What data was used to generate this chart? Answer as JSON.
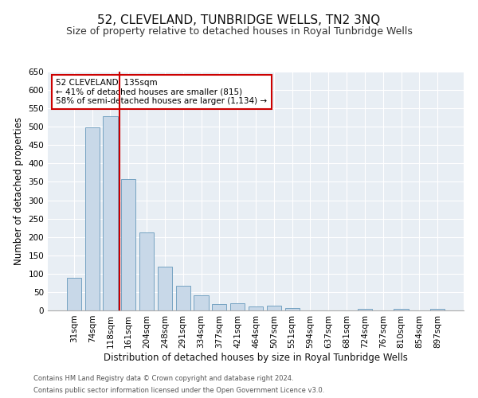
{
  "title": "52, CLEVELAND, TUNBRIDGE WELLS, TN2 3NQ",
  "subtitle": "Size of property relative to detached houses in Royal Tunbridge Wells",
  "xlabel": "Distribution of detached houses by size in Royal Tunbridge Wells",
  "ylabel": "Number of detached properties",
  "footnote1": "Contains HM Land Registry data © Crown copyright and database right 2024.",
  "footnote2": "Contains public sector information licensed under the Open Government Licence v3.0.",
  "bar_labels": [
    "31sqm",
    "74sqm",
    "118sqm",
    "161sqm",
    "204sqm",
    "248sqm",
    "291sqm",
    "334sqm",
    "377sqm",
    "421sqm",
    "464sqm",
    "507sqm",
    "551sqm",
    "594sqm",
    "637sqm",
    "681sqm",
    "724sqm",
    "767sqm",
    "810sqm",
    "854sqm",
    "897sqm"
  ],
  "bar_values": [
    88,
    498,
    528,
    357,
    212,
    120,
    68,
    42,
    17,
    20,
    10,
    12,
    7,
    0,
    0,
    0,
    5,
    0,
    5,
    0,
    5
  ],
  "bar_color": "#c8d8e8",
  "bar_edge_color": "#6699bb",
  "red_line_index": 2.5,
  "annotation_text": "52 CLEVELAND: 135sqm\n← 41% of detached houses are smaller (815)\n58% of semi-detached houses are larger (1,134) →",
  "annotation_box_color": "#ffffff",
  "annotation_box_edge": "#cc0000",
  "red_line_color": "#cc0000",
  "ylim": [
    0,
    650
  ],
  "yticks": [
    0,
    50,
    100,
    150,
    200,
    250,
    300,
    350,
    400,
    450,
    500,
    550,
    600,
    650
  ],
  "background_color": "#e8eef4",
  "title_fontsize": 11,
  "subtitle_fontsize": 9,
  "xlabel_fontsize": 8.5,
  "ylabel_fontsize": 8.5,
  "tick_fontsize": 7.5,
  "annotation_fontsize": 7.5,
  "footnote_fontsize": 6
}
